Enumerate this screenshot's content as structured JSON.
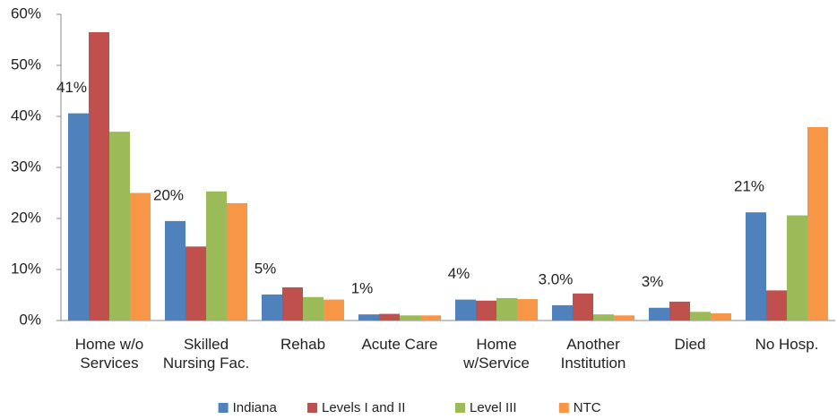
{
  "chart_data": {
    "type": "bar",
    "categories": [
      "Home w/o\nServices",
      "Skilled\nNursing Fac.",
      "Rehab",
      "Acute Care",
      "Home\nw/Service",
      "Another\nInstitution",
      "Died",
      "No Hosp."
    ],
    "series": [
      {
        "name": "Indiana",
        "color": "#4f81bd",
        "values": [
          40.6,
          19.5,
          5.1,
          1.2,
          4.1,
          3.0,
          2.5,
          21.2
        ],
        "value_labels": [
          "41%",
          "20%",
          "5%",
          "1%",
          "4%",
          "3.0%",
          "3%",
          "21%"
        ]
      },
      {
        "name": "Levels I and II",
        "color": "#c0504d",
        "values": [
          56.5,
          14.5,
          6.5,
          1.3,
          3.9,
          5.3,
          3.7,
          5.9
        ]
      },
      {
        "name": "Level III",
        "color": "#9bbb59",
        "values": [
          37,
          25.3,
          4.6,
          1.0,
          4.4,
          1.2,
          1.7,
          20.6
        ]
      },
      {
        "name": "NTC",
        "color": "#f79646",
        "values": [
          25,
          23,
          4.1,
          1.0,
          4.2,
          1.0,
          1.4,
          37.9
        ]
      }
    ],
    "ylim": [
      0,
      60
    ],
    "yticks": [
      {
        "value": 0,
        "label": "0%"
      },
      {
        "value": 10,
        "label": "10%"
      },
      {
        "value": 20,
        "label": "20%"
      },
      {
        "value": 30,
        "label": "30%"
      },
      {
        "value": 40,
        "label": "40%"
      },
      {
        "value": 50,
        "label": "50%"
      },
      {
        "value": 60,
        "label": "60%"
      }
    ],
    "legend": "bottom"
  }
}
